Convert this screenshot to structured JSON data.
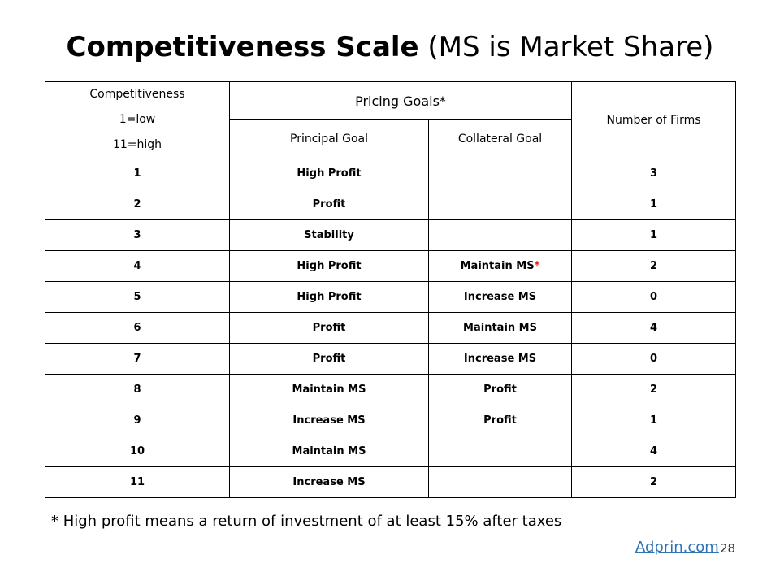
{
  "title": {
    "bold": "Competitiveness Scale",
    "rest": " (MS is Market Share)"
  },
  "table": {
    "header": {
      "competitiveness_lines": [
        "Competitiveness",
        "1=low",
        "11=high"
      ],
      "pricing_goals": "Pricing Goals*",
      "principal_goal": "Principal Goal",
      "collateral_goal": "Collateral Goal",
      "number_of_firms": "Number of Firms"
    },
    "rows": [
      {
        "level": "1",
        "principal": "High Profit",
        "collateral": "",
        "firms": "3"
      },
      {
        "level": "2",
        "principal": "Profit",
        "collateral": "",
        "firms": "1"
      },
      {
        "level": "3",
        "principal": "Stability",
        "collateral": "",
        "firms": "1"
      },
      {
        "level": "4",
        "principal": "High Profit",
        "collateral": "Maintain MS",
        "collateral_mark": "*",
        "firms": "2"
      },
      {
        "level": "5",
        "principal": "High Profit",
        "collateral": "Increase MS",
        "firms": "0"
      },
      {
        "level": "6",
        "principal": "Profit",
        "collateral": "Maintain MS",
        "firms": "4"
      },
      {
        "level": "7",
        "principal": "Profit",
        "collateral": "Increase MS",
        "firms": "0"
      },
      {
        "level": "8",
        "principal": "Maintain MS",
        "collateral": "Profit",
        "firms": "2"
      },
      {
        "level": "9",
        "principal": "Increase MS",
        "collateral": "Profit",
        "firms": "1"
      },
      {
        "level": "10",
        "principal": "Maintain MS",
        "collateral": "",
        "firms": "4"
      },
      {
        "level": "11",
        "principal": "Increase MS",
        "collateral": "",
        "firms": "2"
      }
    ]
  },
  "footnote": "* High profit means a return of investment of at least 15% after taxes",
  "source_link": "Adprin.com",
  "page_number": "28",
  "colors": {
    "asterisk": "#e0201c",
    "link": "#2e74b5"
  }
}
